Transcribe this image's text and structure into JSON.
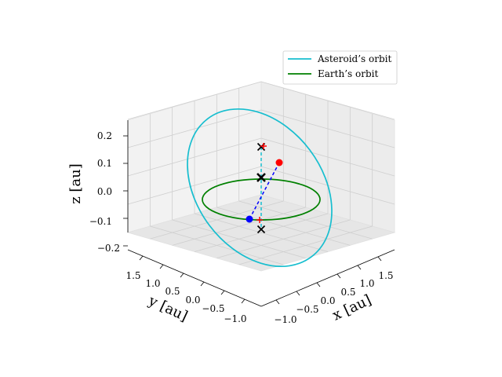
{
  "chart_data": {
    "type": "line",
    "projection": "3d",
    "xlabel": "x [au]",
    "ylabel": "y [au]",
    "zlabel": "z [au]",
    "xlim": [
      -1.2,
      1.8
    ],
    "ylim": [
      -1.2,
      1.8
    ],
    "zlim": [
      -0.22,
      0.24
    ],
    "x_ticks": [
      "−1.0",
      "−0.5",
      "0.0",
      "0.5",
      "1.0",
      "1.5"
    ],
    "y_ticks": [
      "−1.0",
      "−0.5",
      "0.0",
      "0.5",
      "1.0",
      "1.5"
    ],
    "z_ticks": [
      "−0.2",
      "−0.1",
      "0.0",
      "0.1",
      "0.2"
    ],
    "grid": true,
    "legend_position": "top-right",
    "legend": [
      "Asteroid’s orbit",
      "Earth’s orbit"
    ],
    "series": [
      {
        "name": "Asteroid’s orbit",
        "color": "#17becf",
        "center": [
          0.3,
          0.3,
          0.0
        ],
        "radius": 1.25,
        "tilt_deg": 10,
        "note": "inclined ellipse"
      },
      {
        "name": "Earth’s orbit",
        "color": "#008000",
        "center": [
          0.0,
          0.0,
          0.0
        ],
        "radius": 1.0
      }
    ],
    "points": {
      "red_dot": [
        0.35,
        -0.05,
        0.12
      ],
      "blue_dot": [
        -0.25,
        0.55,
        -0.1
      ],
      "crosses": [
        [
          0.05,
          0.05,
          0.17
        ],
        [
          0.05,
          0.05,
          0.05
        ],
        [
          0.05,
          0.05,
          -0.13
        ]
      ]
    },
    "colors": {
      "asteroid": "#17becf",
      "earth": "#008000",
      "dashed_blue": "#0000ff",
      "red": "#ff0000"
    }
  }
}
